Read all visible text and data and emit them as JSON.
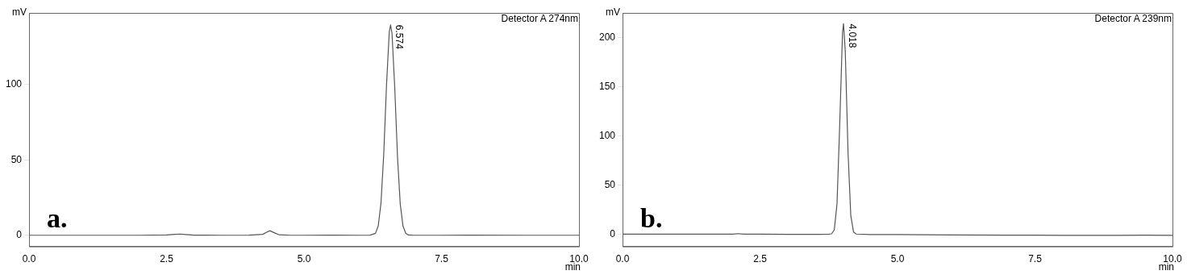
{
  "chart_data": [
    {
      "type": "line",
      "xlabel": "min",
      "ylabel": "mV",
      "grid": false,
      "legend": false,
      "marker": "none",
      "line_style": "solid",
      "annotations": [
        "Detector A 274nm",
        "a.",
        {
          "text": "6.574",
          "x": 6.574,
          "y": 139.6
        }
      ],
      "xlim": [
        0,
        10
      ],
      "xticks": [
        {
          "value": 0,
          "label": "0.0"
        },
        {
          "value": 2.5,
          "label": "2.5"
        },
        {
          "value": 5,
          "label": "5.0"
        },
        {
          "value": 7.5,
          "label": "7.5"
        },
        {
          "value": 10,
          "label": "10.0"
        }
      ],
      "ylim": [
        -7.4,
        147.5
      ],
      "yticks": [
        0,
        50,
        100
      ],
      "series": [
        {
          "color": "#555555",
          "x": [
            0,
            0.5,
            1,
            1.5,
            2,
            2.5,
            2.65,
            2.75,
            2.85,
            3,
            3.5,
            4,
            4.25,
            4.32,
            4.38,
            4.45,
            4.55,
            4.75,
            5,
            5.5,
            6,
            6.2,
            6.3,
            6.35,
            6.4,
            6.45,
            6.5,
            6.55,
            6.574,
            6.6,
            6.65,
            6.7,
            6.75,
            6.8,
            6.85,
            6.9,
            7,
            7.5,
            8,
            9,
            10
          ],
          "values": [
            0,
            0,
            0,
            0,
            0,
            0.2,
            0.6,
            0.8,
            0.5,
            0.1,
            0,
            0.1,
            0.6,
            2,
            3,
            1.8,
            0.3,
            0,
            0,
            0.1,
            0,
            0.1,
            1.3,
            6.3,
            21.5,
            54,
            99.5,
            134.7,
            139.6,
            134,
            97.8,
            52,
            20.6,
            6,
            1.3,
            0.2,
            0,
            0,
            0.1,
            0,
            0
          ]
        }
      ]
    },
    {
      "type": "line",
      "xlabel": "min",
      "ylabel": "mV",
      "grid": false,
      "legend": false,
      "marker": "none",
      "line_style": "solid",
      "annotations": [
        "Detector A 239nm",
        "b.",
        {
          "text": "4.018",
          "x": 4.018,
          "y": 214
        }
      ],
      "xlim": [
        0,
        10
      ],
      "xticks": [
        {
          "value": 0,
          "label": "0.0"
        },
        {
          "value": 2.5,
          "label": "2.5"
        },
        {
          "value": 5,
          "label": "5.0"
        },
        {
          "value": 7.5,
          "label": "7.5"
        },
        {
          "value": 10,
          "label": "10.0"
        }
      ],
      "ylim": [
        -12.5,
        225
      ],
      "yticks": [
        0,
        50,
        100,
        150,
        200
      ],
      "series": [
        {
          "color": "#555555",
          "x": [
            0,
            0.5,
            1,
            1.5,
            2,
            2.1,
            2.2,
            2.5,
            3,
            3.5,
            3.75,
            3.8,
            3.85,
            3.9,
            3.95,
            4,
            4.018,
            4.05,
            4.1,
            4.15,
            4.2,
            4.25,
            4.5,
            5,
            6,
            7,
            7.5,
            8,
            9,
            9.5,
            10
          ],
          "values": [
            0,
            0,
            0,
            0,
            0,
            0.5,
            0,
            0,
            -0.3,
            -0.3,
            0,
            0.3,
            4.2,
            31,
            113,
            205,
            214,
            186,
            84,
            19,
            2.2,
            0.1,
            -0.5,
            -0.5,
            -0.8,
            -1,
            -1,
            -1.2,
            -1.2,
            -1,
            -1.3
          ]
        }
      ]
    }
  ]
}
